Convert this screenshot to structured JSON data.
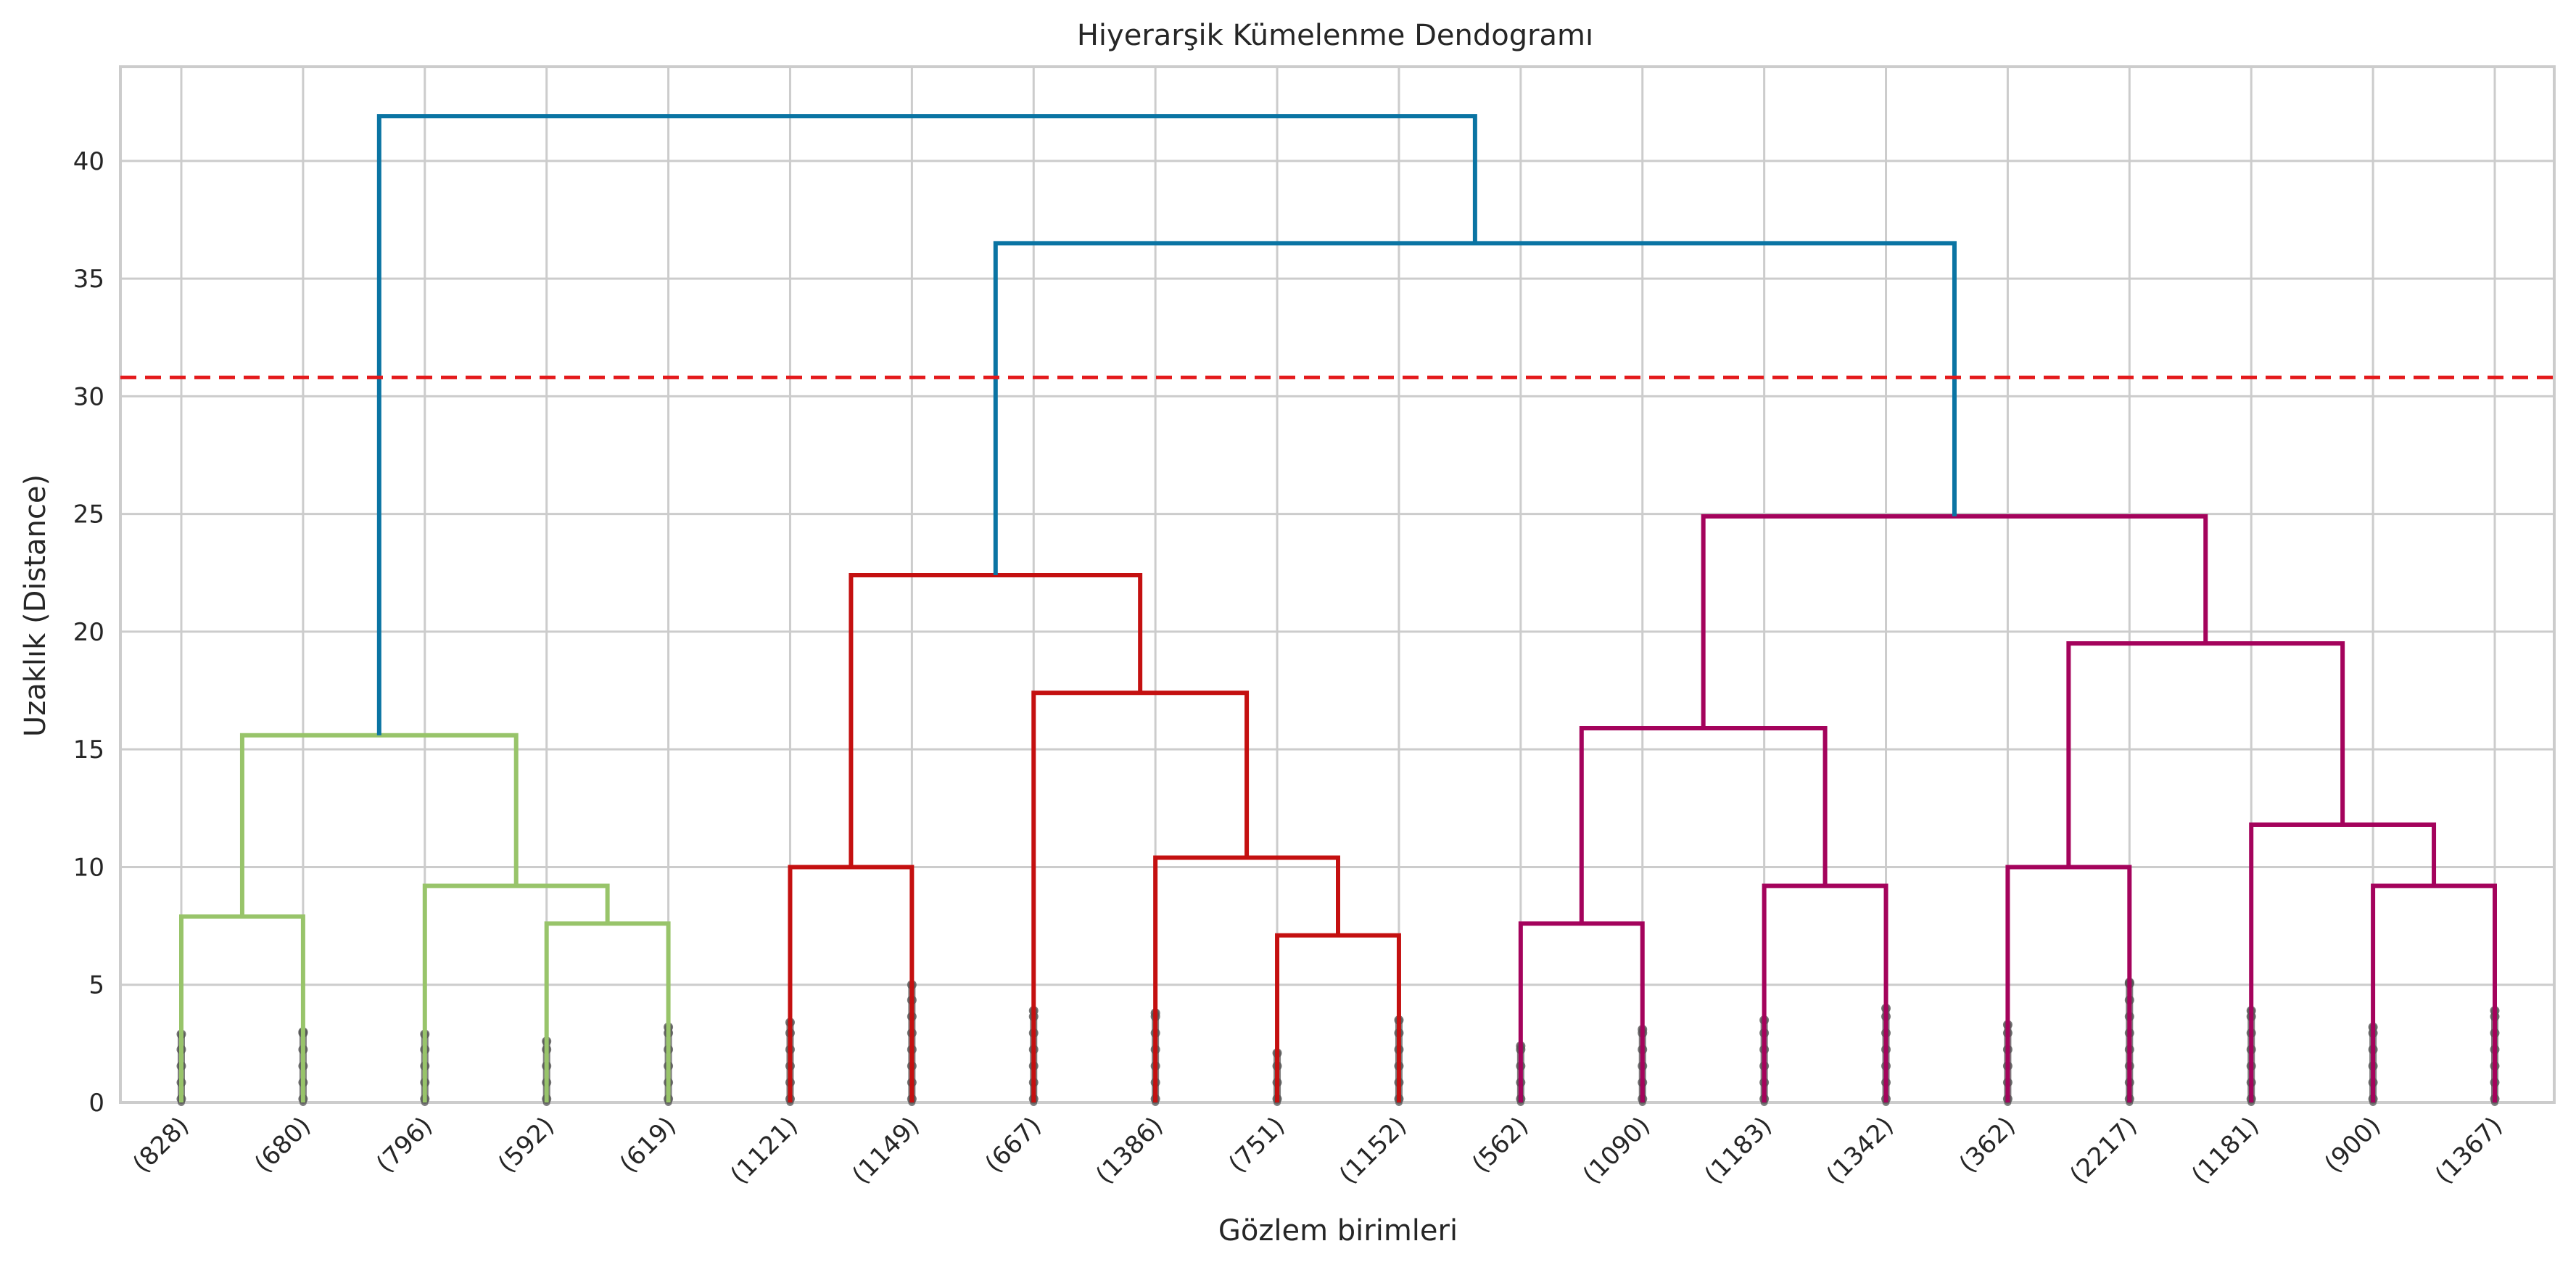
{
  "chart_data": {
    "type": "dendrogram",
    "title": "Hiyerarşik Kümelenme Dendogramı",
    "xlabel": "Gözlem birimleri",
    "ylabel": "Uzaklık (Distance)",
    "ylim": [
      0,
      44
    ],
    "yticks": [
      0,
      5,
      10,
      15,
      20,
      25,
      30,
      35,
      40
    ],
    "grid": true,
    "leaves": [
      "(828)",
      "(680)",
      "(796)",
      "(592)",
      "(619)",
      "(1121)",
      "(1149)",
      "(667)",
      "(1386)",
      "(751)",
      "(1152)",
      "(562)",
      "(1090)",
      "(1183)",
      "(1342)",
      "(362)",
      "(2217)",
      "(1181)",
      "(900)",
      "(1367)"
    ],
    "cut_line": {
      "y": 30.8,
      "color": "#e41a1c",
      "style": "dashed"
    },
    "leaf_dot_max": [
      2.9,
      3.0,
      2.9,
      2.6,
      3.2,
      3.4,
      5.0,
      3.9,
      3.8,
      2.1,
      3.5,
      2.4,
      3.1,
      3.5,
      4.0,
      3.3,
      5.1,
      3.9,
      3.2,
      3.9
    ],
    "colors": {
      "c1": "#98c46a",
      "c2": "#c41010",
      "c3": "#a4035c",
      "root": "#0a74a3",
      "dots": "#555555",
      "grid": "#cccccc"
    },
    "merges": [
      {
        "a": 0,
        "b": 1,
        "h": 7.9,
        "color": "c1"
      },
      {
        "a": 3,
        "b": 4,
        "h": 7.6,
        "color": "c1"
      },
      {
        "a": 2,
        "b": "m1",
        "h": 9.2,
        "color": "c1"
      },
      {
        "a": "m0",
        "b": "m2",
        "h": 15.6,
        "color": "c1"
      },
      {
        "a": 5,
        "b": 6,
        "h": 10.0,
        "color": "c2"
      },
      {
        "a": 9,
        "b": 10,
        "h": 7.1,
        "color": "c2"
      },
      {
        "a": 8,
        "b": "m5",
        "h": 10.4,
        "color": "c2"
      },
      {
        "a": 7,
        "b": "m6",
        "h": 17.4,
        "color": "c2"
      },
      {
        "a": "m4",
        "b": "m7",
        "h": 22.4,
        "color": "c2"
      },
      {
        "a": 11,
        "b": 12,
        "h": 7.6,
        "color": "c3"
      },
      {
        "a": 13,
        "b": 14,
        "h": 9.2,
        "color": "c3"
      },
      {
        "a": "m9",
        "b": "m10",
        "h": 15.9,
        "color": "c3"
      },
      {
        "a": 15,
        "b": 16,
        "h": 10.0,
        "color": "c3"
      },
      {
        "a": 18,
        "b": 19,
        "h": 9.2,
        "color": "c3"
      },
      {
        "a": 17,
        "b": "m13",
        "h": 11.8,
        "color": "c3"
      },
      {
        "a": "m12",
        "b": "m14",
        "h": 19.5,
        "color": "c3"
      },
      {
        "a": "m11",
        "b": "m15",
        "h": 24.9,
        "color": "c3"
      },
      {
        "a": "m8",
        "b": "m16",
        "h": 36.5,
        "color": "root"
      },
      {
        "a": "m3",
        "b": "m17",
        "h": 41.9,
        "color": "root"
      }
    ]
  }
}
